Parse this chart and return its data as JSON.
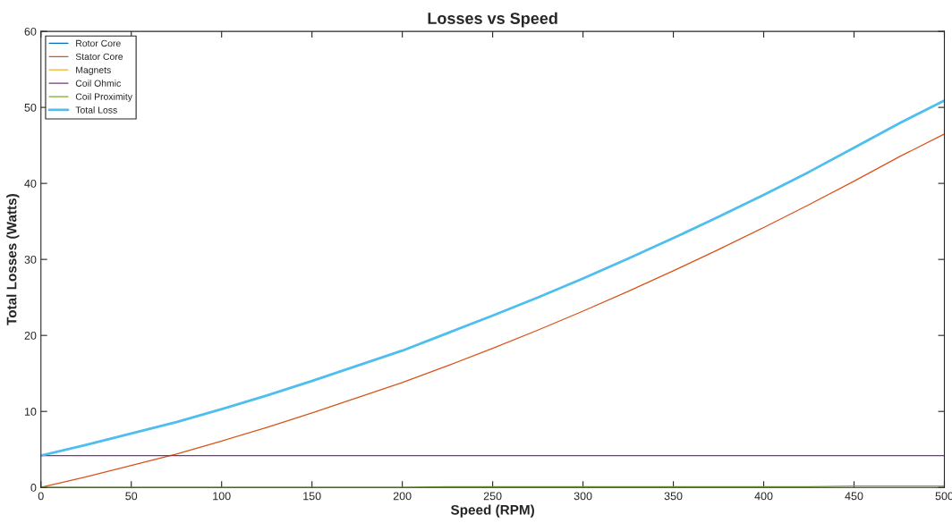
{
  "chart_data": {
    "type": "line",
    "title": "Losses vs Speed",
    "xlabel": "Speed (RPM)",
    "ylabel": "Total Losses (Watts)",
    "x": [
      0,
      25,
      50,
      75,
      100,
      125,
      150,
      175,
      200,
      225,
      250,
      275,
      300,
      325,
      350,
      375,
      400,
      425,
      450,
      475,
      500
    ],
    "xlim": [
      0,
      500
    ],
    "xticks": [
      0,
      50,
      100,
      150,
      200,
      250,
      300,
      350,
      400,
      450,
      500
    ],
    "ylim": [
      0,
      60
    ],
    "yticks": [
      0,
      10,
      20,
      30,
      40,
      50,
      60
    ],
    "grid": false,
    "legend": "top left",
    "series": [
      {
        "name": "Rotor Core",
        "color": "#0072bd",
        "values": [
          null,
          null,
          null,
          null,
          null,
          null,
          null,
          null,
          null,
          null,
          null,
          null,
          null,
          null,
          null,
          null,
          null,
          null,
          null,
          null,
          null
        ]
      },
      {
        "name": "Stator Core",
        "color": "#d95319",
        "values": [
          0,
          1.4,
          2.9,
          4.4,
          6.1,
          7.9,
          9.8,
          11.8,
          13.8,
          16.0,
          18.3,
          20.7,
          23.2,
          25.8,
          28.5,
          31.3,
          34.2,
          37.2,
          40.3,
          43.5,
          46.5
        ]
      },
      {
        "name": "Magnets",
        "color": "#edb120",
        "values": [
          null,
          null,
          null,
          null,
          null,
          null,
          null,
          null,
          null,
          null,
          null,
          null,
          null,
          null,
          null,
          null,
          null,
          null,
          null,
          null,
          null
        ]
      },
      {
        "name": "Coil Ohmic",
        "color": "#7e2f8e",
        "values": [
          4.2,
          4.2,
          4.2,
          4.2,
          4.2,
          4.2,
          4.2,
          4.2,
          4.2,
          4.2,
          4.2,
          4.2,
          4.2,
          4.2,
          4.2,
          4.2,
          4.2,
          4.2,
          4.2,
          4.2,
          4.2
        ]
      },
      {
        "name": "Coil Proximity",
        "color": "#77ac30",
        "values": [
          0,
          0,
          0,
          0,
          0,
          0,
          0,
          0,
          0,
          0.1,
          0.1,
          0.1,
          0.1,
          0.1,
          0.1,
          0.1,
          0.1,
          0.1,
          0.2,
          0.2,
          0.2
        ]
      },
      {
        "name": "Total Loss",
        "color": "#4dbeee",
        "values": [
          4.2,
          5.6,
          7.1,
          8.6,
          10.3,
          12.1,
          14.0,
          16.0,
          18.0,
          20.3,
          22.6,
          25.0,
          27.5,
          30.1,
          32.8,
          35.6,
          38.5,
          41.5,
          44.7,
          47.9,
          50.9
        ]
      }
    ]
  }
}
